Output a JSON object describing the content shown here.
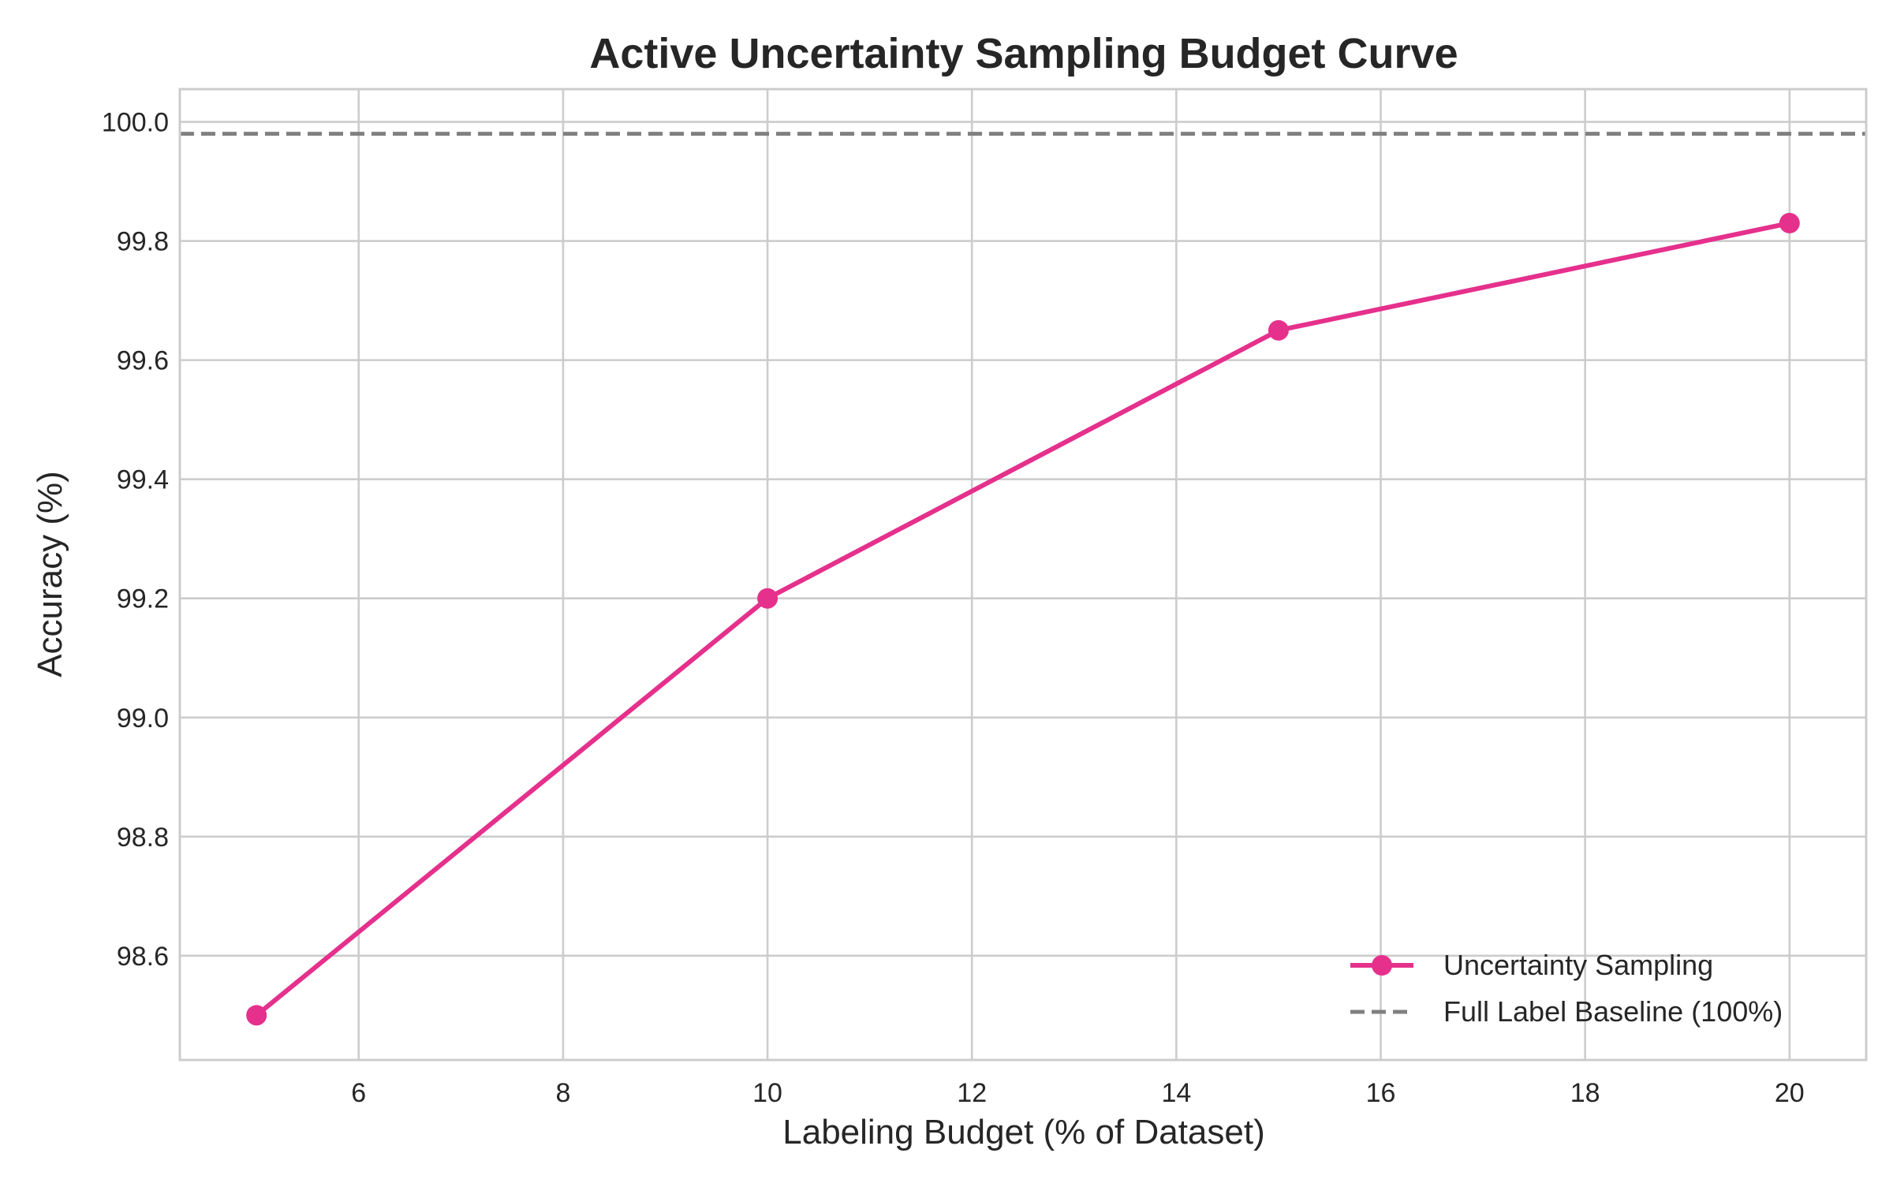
{
  "chart_data": {
    "type": "line",
    "title": "Active Uncertainty Sampling Budget Curve",
    "xlabel": "Labeling Budget (% of Dataset)",
    "ylabel": "Accuracy (%)",
    "xlim": [
      4.25,
      20.75
    ],
    "ylim": [
      98.425,
      100.055
    ],
    "xticks": [
      6,
      8,
      10,
      12,
      14,
      16,
      18,
      20
    ],
    "yticks": [
      98.6,
      98.8,
      99.0,
      99.2,
      99.4,
      99.6,
      99.8,
      100.0
    ],
    "x_tick_labels": [
      "6",
      "8",
      "10",
      "12",
      "14",
      "16",
      "18",
      "20"
    ],
    "y_tick_labels": [
      "98.6",
      "98.8",
      "99.0",
      "99.2",
      "99.4",
      "99.6",
      "99.8",
      "100.0"
    ],
    "grid": true,
    "legend_position": "lower-right",
    "series": [
      {
        "name": "Uncertainty Sampling",
        "color": "#e5308c",
        "style": "solid-with-markers",
        "x": [
          5,
          10,
          15,
          20
        ],
        "y": [
          98.5,
          99.2,
          99.65,
          99.83
        ]
      },
      {
        "name": "Full Label Baseline (100%)",
        "color": "#808080",
        "style": "dashed-horizontal",
        "y": 99.98
      }
    ]
  }
}
